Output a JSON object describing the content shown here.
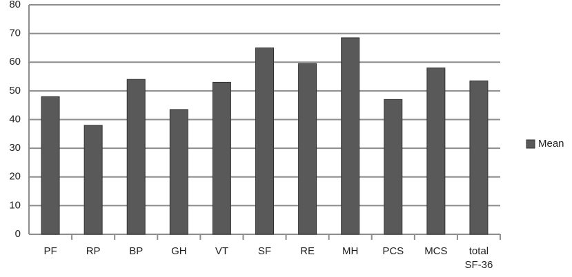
{
  "chart_data": {
    "type": "bar",
    "categories": [
      "PF",
      "RP",
      "BP",
      "GH",
      "VT",
      "SF",
      "RE",
      "MH",
      "PCS",
      "MCS",
      "total SF-36"
    ],
    "series": [
      {
        "name": "Mean",
        "color": "#595959",
        "values": [
          48,
          38,
          54,
          43.5,
          53,
          65,
          59.5,
          68.5,
          47,
          58,
          53.5
        ]
      }
    ],
    "ylim": [
      0,
      80
    ],
    "yticks": [
      0,
      10,
      20,
      30,
      40,
      50,
      60,
      70,
      80
    ],
    "grid": true,
    "legend": "right"
  }
}
